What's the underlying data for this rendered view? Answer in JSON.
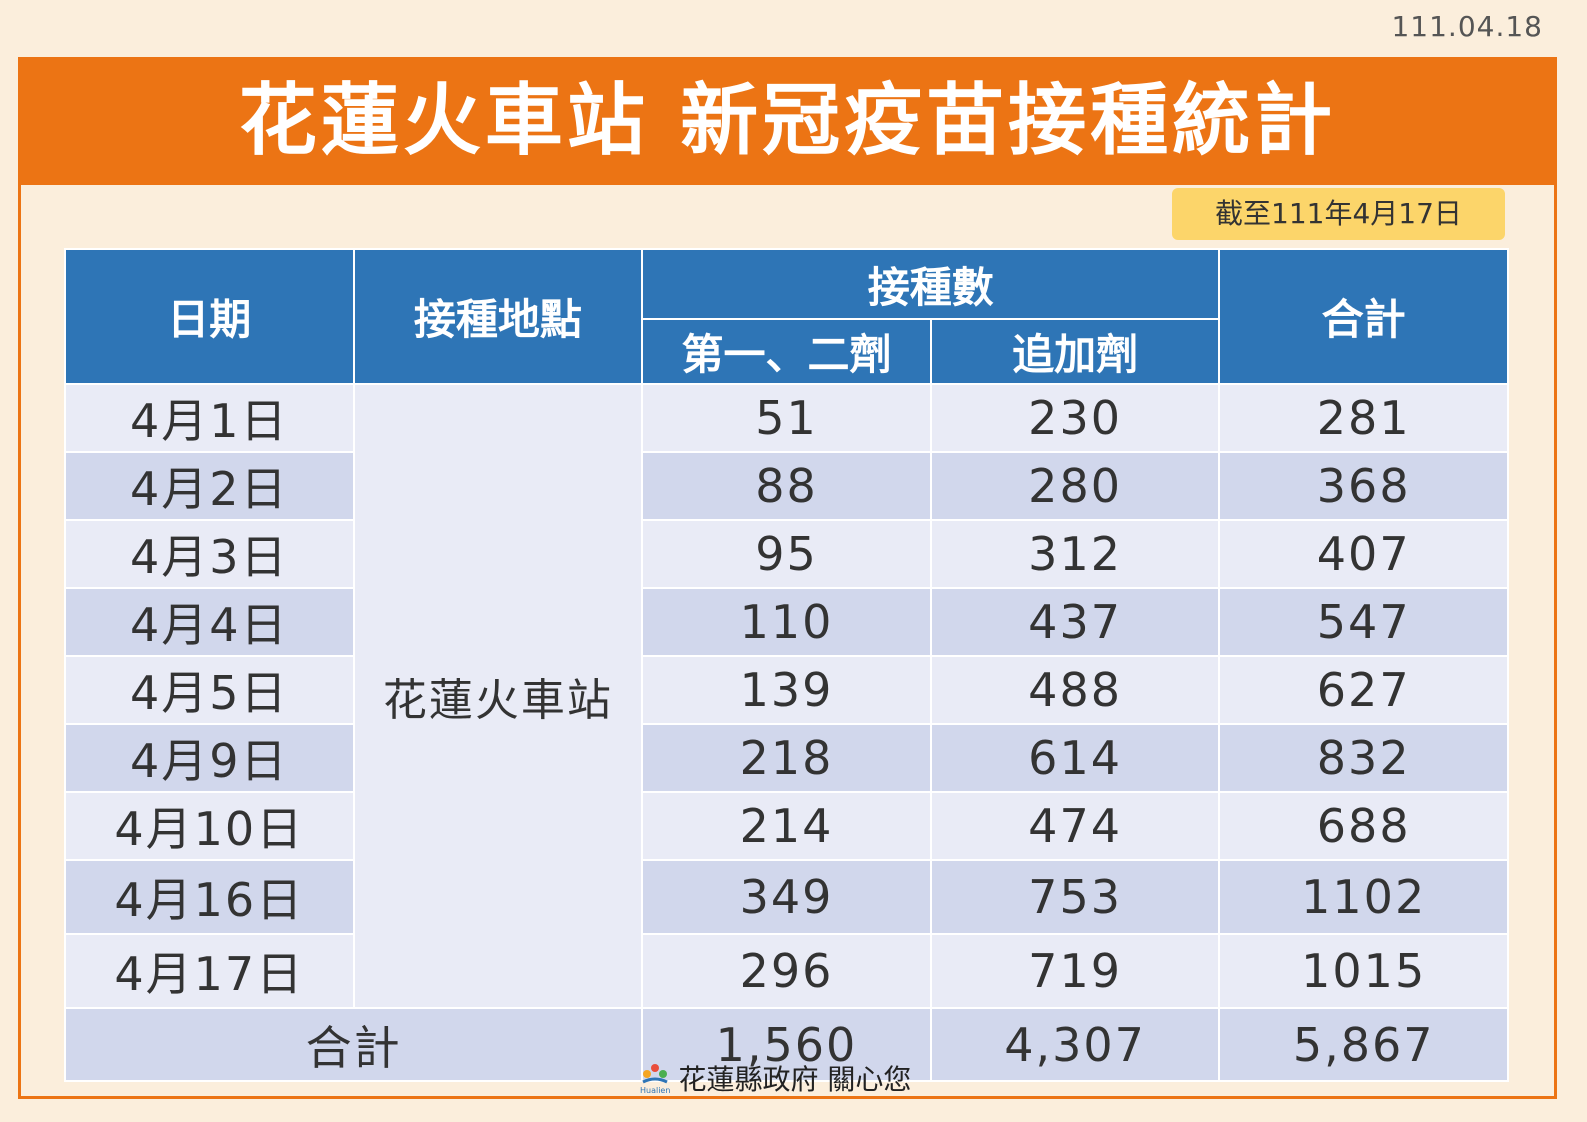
{
  "date": "111.04.18",
  "title": "花蓮火車站 新冠疫苗接種統計",
  "as_of": "截至111年4月17日",
  "table": {
    "headers": {
      "date": "日期",
      "location": "接種地點",
      "doses": "接種數",
      "first_second": "第一、二劑",
      "booster": "追加劑",
      "total": "合計"
    },
    "location": "花蓮火車站",
    "rows": [
      [
        "4月1日",
        "51",
        "230",
        "281"
      ],
      [
        "4月2日",
        "88",
        "280",
        "368"
      ],
      [
        "4月3日",
        "95",
        "312",
        "407"
      ],
      [
        "4月4日",
        "110",
        "437",
        "547"
      ],
      [
        "4月5日",
        "139",
        "488",
        "627"
      ],
      [
        "4月9日",
        "218",
        "614",
        "832"
      ],
      [
        "4月10日",
        "214",
        "474",
        "688"
      ],
      [
        "4月16日",
        "349",
        "753",
        "1102"
      ],
      [
        "4月17日",
        "296",
        "719",
        "1015"
      ]
    ],
    "total_row": [
      "合計",
      "1,560",
      "4,307",
      "5,867"
    ]
  },
  "footer": {
    "logo_text": "Hualien",
    "text": "花蓮縣政府 關心您"
  }
}
